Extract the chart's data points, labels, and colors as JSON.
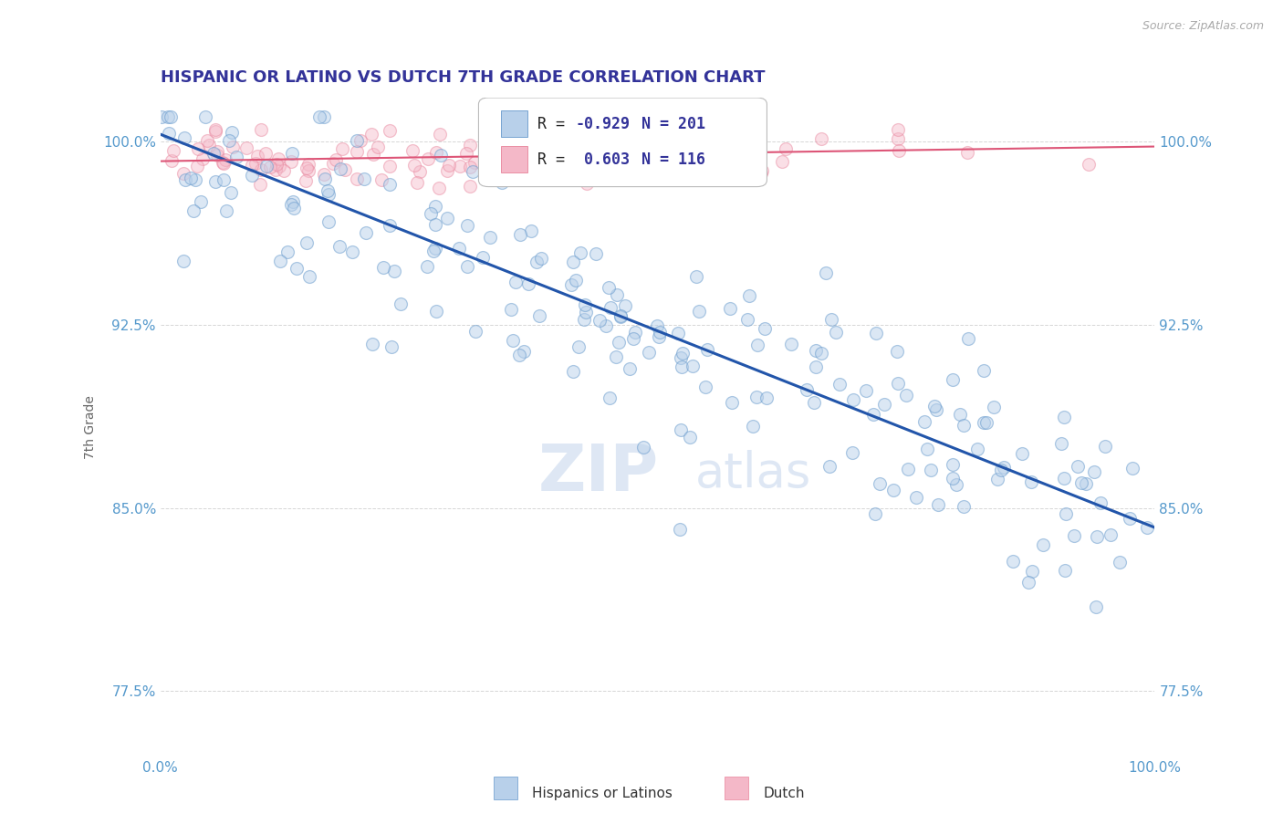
{
  "title": "HISPANIC OR LATINO VS DUTCH 7TH GRADE CORRELATION CHART",
  "source_text": "Source: ZipAtlas.com",
  "ylabel": "7th Grade",
  "xlim": [
    0.0,
    1.0
  ],
  "ylim": [
    0.748,
    1.018
  ],
  "yticks": [
    0.775,
    0.85,
    0.925,
    1.0
  ],
  "ytick_labels": [
    "77.5%",
    "85.0%",
    "92.5%",
    "100.0%"
  ],
  "xticks": [
    0.0,
    1.0
  ],
  "xtick_labels": [
    "0.0%",
    "100.0%"
  ],
  "blue_color": "#b8d0ea",
  "blue_edge_color": "#6699cc",
  "pink_color": "#f4b8c8",
  "pink_edge_color": "#e8829a",
  "blue_line_color": "#2255aa",
  "pink_line_color": "#dd5577",
  "R_blue": -0.929,
  "N_blue": 201,
  "R_pink": 0.603,
  "N_pink": 116,
  "legend_label_blue": "Hispanics or Latinos",
  "legend_label_pink": "Dutch",
  "background_color": "#ffffff",
  "grid_color": "#cccccc",
  "title_color": "#333399",
  "axis_label_color": "#666666",
  "tick_label_color": "#5599cc",
  "marker_size": 100,
  "alpha_blue": 0.5,
  "alpha_pink": 0.45,
  "blue_line_start_y": 1.003,
  "blue_line_end_y": 0.842,
  "pink_line_start_x": 0.0,
  "pink_line_start_y": 0.992,
  "pink_line_end_x": 1.0,
  "pink_line_end_y": 0.998
}
